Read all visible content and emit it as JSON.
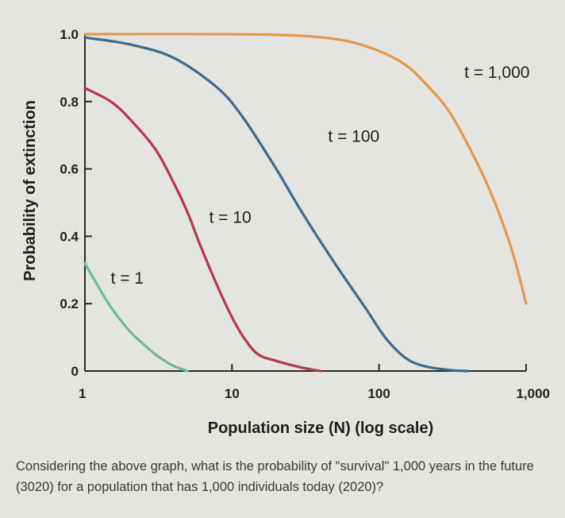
{
  "chart_data": {
    "type": "line",
    "xlabel": "Population size (N) (log scale)",
    "ylabel": "Probability of extinction",
    "x_scale": "log",
    "xlim": [
      1,
      1000
    ],
    "ylim": [
      0,
      1.0
    ],
    "x_ticks": [
      1,
      10,
      100,
      1000
    ],
    "x_tick_labels": [
      "1",
      "10",
      "100",
      "1,000"
    ],
    "y_ticks": [
      0,
      0.2,
      0.4,
      0.6,
      0.8,
      1.0
    ],
    "y_tick_labels": [
      "0",
      "0.2",
      "0.4",
      "0.6",
      "0.8",
      "1.0"
    ],
    "grid": false,
    "legend": "none",
    "series": [
      {
        "name": "t = 1",
        "color": "#72b8a4",
        "points": [
          [
            1,
            0.32
          ],
          [
            1.2,
            0.26
          ],
          [
            1.5,
            0.19
          ],
          [
            2,
            0.12
          ],
          [
            2.5,
            0.08
          ],
          [
            3,
            0.05
          ],
          [
            3.5,
            0.03
          ],
          [
            4,
            0.015
          ],
          [
            5,
            0.0
          ]
        ]
      },
      {
        "name": "t = 10",
        "color": "#b03a48",
        "points": [
          [
            1,
            0.84
          ],
          [
            1.5,
            0.8
          ],
          [
            2,
            0.75
          ],
          [
            3,
            0.66
          ],
          [
            4,
            0.56
          ],
          [
            5,
            0.47
          ],
          [
            6,
            0.38
          ],
          [
            8,
            0.25
          ],
          [
            10,
            0.16
          ],
          [
            12,
            0.1
          ],
          [
            15,
            0.05
          ],
          [
            20,
            0.03
          ],
          [
            30,
            0.01
          ],
          [
            40,
            0.0
          ]
        ]
      },
      {
        "name": "t = 100",
        "color": "#3e6a8e",
        "points": [
          [
            1,
            0.99
          ],
          [
            2,
            0.97
          ],
          [
            4,
            0.93
          ],
          [
            8,
            0.84
          ],
          [
            12,
            0.75
          ],
          [
            20,
            0.6
          ],
          [
            30,
            0.47
          ],
          [
            50,
            0.32
          ],
          [
            80,
            0.19
          ],
          [
            110,
            0.1
          ],
          [
            150,
            0.04
          ],
          [
            200,
            0.015
          ],
          [
            300,
            0.003
          ],
          [
            400,
            0.0
          ]
        ]
      },
      {
        "name": "t = 1,000",
        "color": "#e09a4e",
        "points": [
          [
            1,
            1.0
          ],
          [
            10,
            1.0
          ],
          [
            30,
            0.995
          ],
          [
            60,
            0.98
          ],
          [
            100,
            0.95
          ],
          [
            150,
            0.91
          ],
          [
            200,
            0.86
          ],
          [
            300,
            0.77
          ],
          [
            450,
            0.63
          ],
          [
            600,
            0.51
          ],
          [
            800,
            0.36
          ],
          [
            1000,
            0.2
          ]
        ]
      }
    ],
    "annotations": [
      {
        "text": "t = 1",
        "series": 0,
        "x": 1.5,
        "y": 0.26
      },
      {
        "text": "t = 10",
        "series": 1,
        "x": 7,
        "y": 0.44
      },
      {
        "text": "t = 100",
        "series": 2,
        "x": 45,
        "y": 0.68
      },
      {
        "text": "t = 1,000",
        "series": 3,
        "x": 380,
        "y": 0.87
      }
    ]
  },
  "question": "Considering the above graph, what is the probability of \"survival\" 1,000 years in the future (3020) for a population that has 1,000 individuals today (2020)?"
}
